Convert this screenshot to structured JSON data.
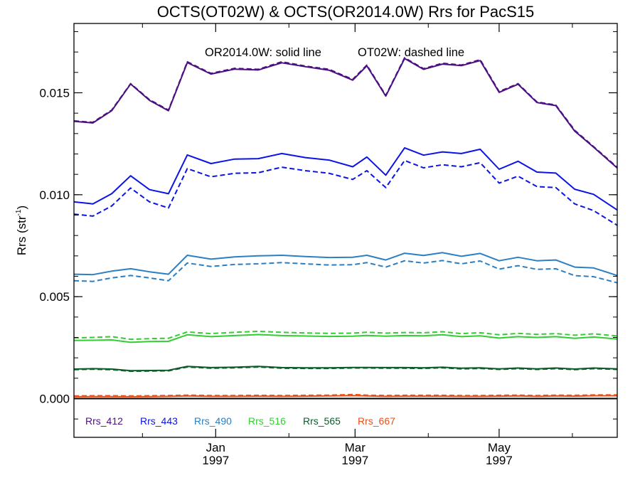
{
  "chart_data": {
    "type": "line",
    "title": "OCTS(OT02W) & OCTS(OR2014.0W)  Rrs for PacS15",
    "annotation_solid": "OR2014.0W: solid line",
    "annotation_dashed": "OT02W: dashed line",
    "ylabel_main": "Rrs (str",
    "ylabel_sup": "-1",
    "ylabel_close": ")",
    "ylim": [
      -0.0019,
      0.0184
    ],
    "yticks": [
      {
        "value": 0.0,
        "label": "0.000"
      },
      {
        "value": 0.005,
        "label": "0.005"
      },
      {
        "value": 0.01,
        "label": "0.010"
      },
      {
        "value": 0.015,
        "label": "0.015"
      }
    ],
    "ytick_minor_step": 0.001,
    "x_start": "1996-11-02",
    "x_end": "1997-06-20",
    "xticks": [
      {
        "date": "1997-01-01",
        "label": "Jan",
        "label2": "1997"
      },
      {
        "date": "1997-03-01",
        "label": "Mar",
        "label2": "1997"
      },
      {
        "date": "1997-05-01",
        "label": "May",
        "label2": "1997"
      }
    ],
    "xtick_minor_dates": [
      "1996-12-01",
      "1997-02-01",
      "1997-04-01",
      "1997-06-01"
    ],
    "x_dates": [
      "1996-11-02",
      "1996-11-10",
      "1996-11-18",
      "1996-11-26",
      "1996-12-04",
      "1996-12-12",
      "1996-12-20",
      "1996-12-30",
      "1997-01-09",
      "1997-01-19",
      "1997-01-29",
      "1997-02-08",
      "1997-02-18",
      "1997-02-28",
      "1997-03-06",
      "1997-03-14",
      "1997-03-22",
      "1997-03-30",
      "1997-04-07",
      "1997-04-15",
      "1997-04-23",
      "1997-05-01",
      "1997-05-09",
      "1997-05-17",
      "1997-05-25",
      "1997-06-02",
      "1997-06-10",
      "1997-06-20"
    ],
    "zero_line": 0.0,
    "series": [
      {
        "name": "Rrs_412",
        "color": "#4b0f82",
        "solid": [
          0.0136,
          0.01352,
          0.01412,
          0.01543,
          0.01463,
          0.01412,
          0.01648,
          0.01592,
          0.01616,
          0.01612,
          0.01647,
          0.01628,
          0.01611,
          0.01562,
          0.01632,
          0.01484,
          0.01668,
          0.01615,
          0.01641,
          0.01633,
          0.01658,
          0.01502,
          0.01542,
          0.01452,
          0.01437,
          0.01312,
          0.01233,
          0.01131
        ],
        "dashed": [
          0.01362,
          0.01355,
          0.01415,
          0.01545,
          0.01466,
          0.01415,
          0.01652,
          0.01595,
          0.0162,
          0.01615,
          0.01652,
          0.01631,
          0.01615,
          0.01566,
          0.01636,
          0.01487,
          0.01672,
          0.01618,
          0.01645,
          0.01636,
          0.01662,
          0.01506,
          0.01545,
          0.01455,
          0.0144,
          0.01316,
          0.01236,
          0.01134
        ]
      },
      {
        "name": "Rrs_443",
        "color": "#0a14e6",
        "solid": [
          0.00965,
          0.00955,
          0.01005,
          0.01093,
          0.01025,
          0.01005,
          0.01195,
          0.01153,
          0.01175,
          0.01177,
          0.01202,
          0.01182,
          0.0117,
          0.01137,
          0.01185,
          0.01096,
          0.0123,
          0.01194,
          0.0121,
          0.01202,
          0.01223,
          0.01125,
          0.01164,
          0.01111,
          0.01106,
          0.01027,
          0.01002,
          0.00925
        ],
        "dashed": [
          0.00905,
          0.00895,
          0.00945,
          0.01033,
          0.00965,
          0.00935,
          0.01128,
          0.01088,
          0.01105,
          0.01108,
          0.01135,
          0.01118,
          0.01105,
          0.01075,
          0.01118,
          0.01035,
          0.01168,
          0.01132,
          0.01147,
          0.01137,
          0.01157,
          0.01057,
          0.01091,
          0.0104,
          0.01035,
          0.00955,
          0.00922,
          0.0085
        ]
      },
      {
        "name": "Rrs_490",
        "color": "#2b7fc3",
        "solid": [
          0.0061,
          0.00608,
          0.00625,
          0.00637,
          0.00622,
          0.0061,
          0.00703,
          0.00684,
          0.00695,
          0.007,
          0.00703,
          0.00697,
          0.00692,
          0.00693,
          0.00703,
          0.0068,
          0.00713,
          0.00702,
          0.00716,
          0.00698,
          0.00712,
          0.00676,
          0.00693,
          0.00676,
          0.0068,
          0.00645,
          0.00641,
          0.00604
        ],
        "dashed": [
          0.00578,
          0.00575,
          0.00592,
          0.00604,
          0.00592,
          0.00578,
          0.00665,
          0.00648,
          0.00658,
          0.00661,
          0.00667,
          0.00661,
          0.00655,
          0.00657,
          0.00667,
          0.00645,
          0.00676,
          0.00665,
          0.00677,
          0.00661,
          0.00675,
          0.00635,
          0.00652,
          0.00634,
          0.00637,
          0.00603,
          0.00598,
          0.00568
        ]
      },
      {
        "name": "Rrs_516",
        "color": "#33cc33",
        "solid": [
          0.00285,
          0.00286,
          0.00288,
          0.00276,
          0.0028,
          0.00281,
          0.00313,
          0.00304,
          0.00309,
          0.00314,
          0.00309,
          0.00307,
          0.00305,
          0.00306,
          0.0031,
          0.00306,
          0.00309,
          0.00308,
          0.00313,
          0.00304,
          0.00308,
          0.00297,
          0.00304,
          0.003,
          0.00304,
          0.00296,
          0.00302,
          0.00292
        ],
        "dashed": [
          0.00298,
          0.003,
          0.00304,
          0.00291,
          0.00294,
          0.00296,
          0.00327,
          0.00319,
          0.00325,
          0.0033,
          0.00325,
          0.00322,
          0.0032,
          0.00321,
          0.00326,
          0.00321,
          0.00324,
          0.00323,
          0.00328,
          0.00319,
          0.00323,
          0.00313,
          0.0032,
          0.00315,
          0.00319,
          0.00311,
          0.00318,
          0.00307
        ]
      },
      {
        "name": "Rrs_565",
        "color": "#0c5c2a",
        "solid": [
          0.00145,
          0.00147,
          0.00145,
          0.00137,
          0.00138,
          0.00139,
          0.00158,
          0.00152,
          0.00154,
          0.00158,
          0.00152,
          0.00151,
          0.00151,
          0.00153,
          0.00153,
          0.00152,
          0.00152,
          0.00151,
          0.00154,
          0.00149,
          0.00151,
          0.00146,
          0.0015,
          0.00146,
          0.0015,
          0.00145,
          0.0015,
          0.00146
        ],
        "dashed": [
          0.00142,
          0.00144,
          0.00142,
          0.00134,
          0.00135,
          0.00136,
          0.00155,
          0.00149,
          0.00151,
          0.00155,
          0.00149,
          0.00148,
          0.00148,
          0.0015,
          0.0015,
          0.00149,
          0.00149,
          0.00148,
          0.00151,
          0.00146,
          0.00148,
          0.00143,
          0.00147,
          0.00143,
          0.00147,
          0.00142,
          0.00147,
          0.00143
        ]
      },
      {
        "name": "Rrs_667",
        "color": "#e8501a",
        "solid": [
          9e-05,
          0.0001,
          0.0001,
          9e-05,
          0.0001,
          0.00011,
          0.00013,
          0.00011,
          0.00011,
          0.00012,
          0.00011,
          0.00012,
          0.00013,
          0.00015,
          0.00013,
          0.00011,
          0.00012,
          0.00012,
          0.00012,
          0.00011,
          0.00011,
          0.00012,
          0.00013,
          0.00011,
          0.00013,
          0.00012,
          0.00014,
          0.00014
        ],
        "dashed": [
          0.00013,
          0.00014,
          0.00014,
          0.00013,
          0.00014,
          0.00015,
          0.00017,
          0.00015,
          0.00015,
          0.00016,
          0.00015,
          0.00016,
          0.00017,
          0.0002,
          0.00017,
          0.00015,
          0.00016,
          0.00016,
          0.00016,
          0.00015,
          0.00015,
          0.00016,
          0.00017,
          0.00015,
          0.00017,
          0.00016,
          0.00018,
          0.00018
        ]
      }
    ],
    "grid": false,
    "legend_position": "bottom-left-inside"
  }
}
